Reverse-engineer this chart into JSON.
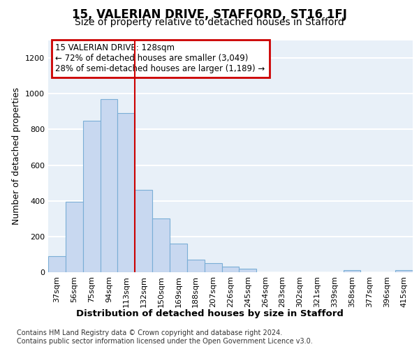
{
  "title1": "15, VALERIAN DRIVE, STAFFORD, ST16 1FJ",
  "title2": "Size of property relative to detached houses in Stafford",
  "xlabel": "Distribution of detached houses by size in Stafford",
  "ylabel": "Number of detached properties",
  "categories": [
    "37sqm",
    "56sqm",
    "75sqm",
    "94sqm",
    "113sqm",
    "132sqm",
    "150sqm",
    "169sqm",
    "188sqm",
    "207sqm",
    "226sqm",
    "245sqm",
    "264sqm",
    "283sqm",
    "302sqm",
    "321sqm",
    "339sqm",
    "358sqm",
    "377sqm",
    "396sqm",
    "415sqm"
  ],
  "values": [
    90,
    395,
    850,
    970,
    890,
    460,
    300,
    160,
    70,
    52,
    32,
    20,
    0,
    0,
    0,
    0,
    0,
    10,
    0,
    0,
    12
  ],
  "bar_color": "#c8d8f0",
  "bar_edge_color": "#7aaed6",
  "vline_x_index": 5,
  "vline_color": "#cc0000",
  "annotation_text": "15 VALERIAN DRIVE: 128sqm\n← 72% of detached houses are smaller (3,049)\n28% of semi-detached houses are larger (1,189) →",
  "annotation_box_color": "#cc0000",
  "ylim": [
    0,
    1300
  ],
  "yticks": [
    0,
    200,
    400,
    600,
    800,
    1000,
    1200
  ],
  "footer1": "Contains HM Land Registry data © Crown copyright and database right 2024.",
  "footer2": "Contains public sector information licensed under the Open Government Licence v3.0.",
  "background_color": "#ffffff",
  "plot_bg_color": "#e8f0f8",
  "grid_color": "#ffffff",
  "title1_fontsize": 12,
  "title2_fontsize": 10,
  "xlabel_fontsize": 9.5,
  "ylabel_fontsize": 9,
  "tick_fontsize": 8,
  "annotation_fontsize": 8.5,
  "footer_fontsize": 7
}
